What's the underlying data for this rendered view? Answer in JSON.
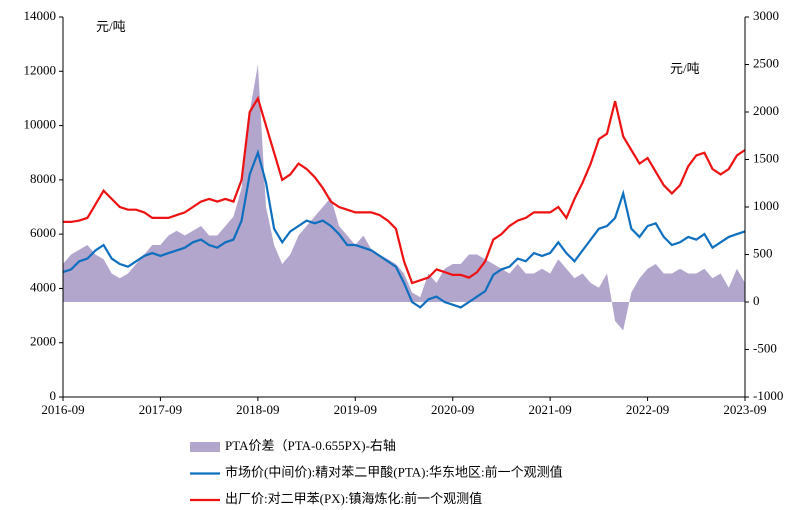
{
  "chart_data": {
    "type": "line",
    "x": [
      "2016-09",
      "2016-10",
      "2016-11",
      "2016-12",
      "2017-01",
      "2017-02",
      "2017-03",
      "2017-04",
      "2017-05",
      "2017-06",
      "2017-07",
      "2017-08",
      "2017-09",
      "2017-10",
      "2017-11",
      "2017-12",
      "2018-01",
      "2018-02",
      "2018-03",
      "2018-04",
      "2018-05",
      "2018-06",
      "2018-07",
      "2018-08",
      "2018-09",
      "2018-10",
      "2018-11",
      "2018-12",
      "2019-01",
      "2019-02",
      "2019-03",
      "2019-04",
      "2019-05",
      "2019-06",
      "2019-07",
      "2019-08",
      "2019-09",
      "2019-10",
      "2019-11",
      "2019-12",
      "2020-01",
      "2020-02",
      "2020-03",
      "2020-04",
      "2020-05",
      "2020-06",
      "2020-07",
      "2020-08",
      "2020-09",
      "2020-10",
      "2020-11",
      "2020-12",
      "2021-01",
      "2021-02",
      "2021-03",
      "2021-04",
      "2021-05",
      "2021-06",
      "2021-07",
      "2021-08",
      "2021-09",
      "2021-10",
      "2021-11",
      "2021-12",
      "2022-01",
      "2022-02",
      "2022-03",
      "2022-04",
      "2022-05",
      "2022-06",
      "2022-07",
      "2022-08",
      "2022-09",
      "2022-10",
      "2022-11",
      "2022-12",
      "2023-01",
      "2023-02",
      "2023-03",
      "2023-04",
      "2023-05",
      "2023-06",
      "2023-07",
      "2023-08",
      "2023-09"
    ],
    "xticks": [
      "2016-09",
      "2017-09",
      "2018-09",
      "2019-09",
      "2020-09",
      "2021-09",
      "2022-09",
      "2023-09"
    ],
    "ylim": [
      0,
      14000
    ],
    "yticks": [
      0,
      2000,
      4000,
      6000,
      8000,
      10000,
      12000,
      14000
    ],
    "y2lim": [
      -1000,
      3000
    ],
    "y2ticks": [
      -1000,
      -500,
      0,
      500,
      1000,
      1500,
      2000,
      2500,
      3000
    ],
    "annotations": [
      "元/吨",
      "元/吨"
    ],
    "series": [
      {
        "name": "PTA价差（PTA-0.655PX)-右轴",
        "type": "area",
        "axis": "y2",
        "color": "#b3a6cc",
        "values": [
          400,
          500,
          550,
          600,
          500,
          450,
          300,
          250,
          300,
          400,
          500,
          600,
          600,
          700,
          750,
          700,
          750,
          800,
          700,
          700,
          800,
          900,
          1200,
          2000,
          2500,
          1000,
          600,
          400,
          500,
          700,
          800,
          900,
          1000,
          1100,
          800,
          700,
          600,
          700,
          550,
          500,
          450,
          400,
          300,
          100,
          50,
          300,
          200,
          350,
          400,
          400,
          500,
          500,
          450,
          400,
          350,
          300,
          400,
          300,
          300,
          350,
          300,
          450,
          350,
          250,
          300,
          200,
          150,
          300,
          -200,
          -300,
          100,
          250,
          350,
          400,
          300,
          300,
          350,
          300,
          300,
          350,
          250,
          300,
          150,
          350,
          200
        ]
      },
      {
        "name": "市场价(中间价):精对苯二甲酸(PTA):华东地区:前一个观测值",
        "type": "line",
        "color": "#0f6fbf",
        "values": [
          4600,
          4700,
          5000,
          5100,
          5400,
          5600,
          5100,
          4900,
          4800,
          5000,
          5200,
          5300,
          5200,
          5300,
          5400,
          5500,
          5700,
          5800,
          5600,
          5500,
          5700,
          5800,
          6500,
          8200,
          9000,
          7900,
          6200,
          5700,
          6100,
          6300,
          6500,
          6400,
          6500,
          6300,
          6000,
          5600,
          5600,
          5500,
          5400,
          5200,
          5000,
          4800,
          4200,
          3500,
          3300,
          3600,
          3700,
          3500,
          3400,
          3300,
          3500,
          3700,
          3900,
          4500,
          4700,
          4800,
          5100,
          5000,
          5300,
          5200,
          5300,
          5700,
          5300,
          5000,
          5400,
          5800,
          6200,
          6300,
          6600,
          7500,
          6200,
          5900,
          6300,
          6400,
          5900,
          5600,
          5700,
          5900,
          5800,
          6000,
          5500,
          5700,
          5900,
          6000,
          6100
        ]
      },
      {
        "name": "出厂价:对二甲苯(PX):镇海炼化:前一个观测值",
        "type": "line",
        "color": "#ee1111",
        "values": [
          6450,
          6450,
          6500,
          6600,
          7100,
          7600,
          7300,
          7000,
          6900,
          6900,
          6800,
          6600,
          6600,
          6600,
          6700,
          6800,
          7000,
          7200,
          7300,
          7200,
          7300,
          7200,
          8000,
          10500,
          11000,
          10000,
          9000,
          8000,
          8200,
          8600,
          8400,
          8100,
          7700,
          7200,
          7000,
          6900,
          6800,
          6800,
          6800,
          6700,
          6500,
          6200,
          5000,
          4200,
          4300,
          4400,
          4700,
          4600,
          4500,
          4500,
          4400,
          4600,
          5000,
          5800,
          6000,
          6300,
          6500,
          6600,
          6800,
          6800,
          6800,
          7000,
          6600,
          7300,
          7900,
          8600,
          9500,
          9700,
          10900,
          9600,
          9100,
          8600,
          8800,
          8300,
          7800,
          7500,
          7800,
          8500,
          8900,
          9000,
          8400,
          8200,
          8400,
          8900,
          9100
        ]
      }
    ]
  }
}
